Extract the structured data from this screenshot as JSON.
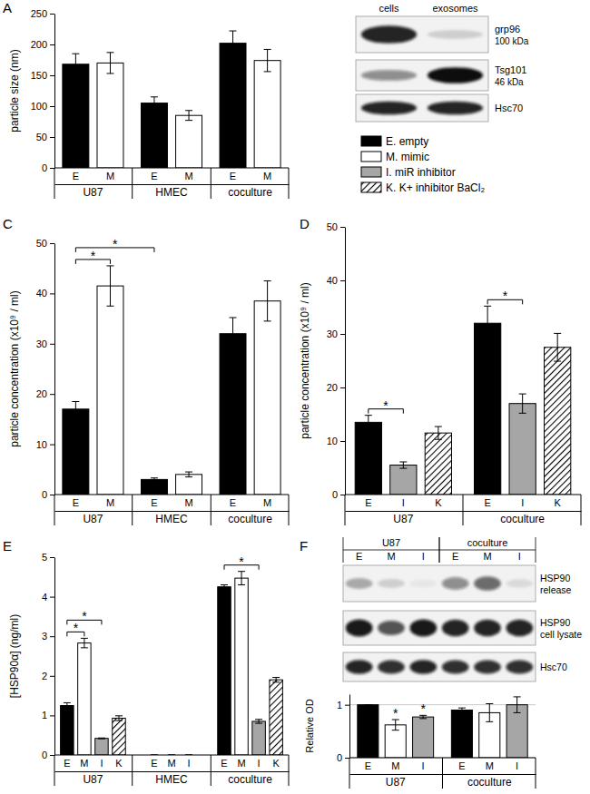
{
  "chart_data": [
    {
      "type": "bar",
      "title": "A",
      "ylabel": "particle size (nm)",
      "categories": [
        "U87",
        "HMEC",
        "coculture"
      ],
      "series": [
        {
          "name": "E",
          "color": "#000000",
          "values": [
            168,
            105,
            202
          ],
          "errors": [
            17,
            10,
            20
          ]
        },
        {
          "name": "M",
          "color": "#ffffff",
          "values": [
            170,
            85,
            174
          ],
          "errors": [
            17,
            8,
            18
          ]
        }
      ],
      "ylim": [
        0,
        250
      ],
      "yticks": [
        0,
        50,
        100,
        150,
        200,
        250
      ],
      "grid": false
    },
    {
      "type": "bar",
      "title": "C",
      "ylabel": "particle concentration (x10⁹ / ml)",
      "categories": [
        "U87",
        "HMEC",
        "coculture"
      ],
      "series": [
        {
          "name": "E",
          "color": "#000000",
          "values": [
            17,
            3,
            32
          ],
          "errors": [
            1.5,
            0.3,
            3.2
          ]
        },
        {
          "name": "M",
          "color": "#ffffff",
          "values": [
            41.5,
            4,
            38.5
          ],
          "errors": [
            4,
            0.5,
            4
          ]
        }
      ],
      "ylim": [
        0,
        50
      ],
      "yticks": [
        0,
        10,
        20,
        30,
        40,
        50
      ],
      "grid": false,
      "annotations": [
        {
          "text": "*",
          "from": [
            "U87",
            "E"
          ],
          "to": [
            "U87",
            "M"
          ]
        },
        {
          "text": "*",
          "from": [
            "U87",
            "E"
          ],
          "to": [
            "HMEC",
            "E"
          ]
        }
      ]
    },
    {
      "type": "bar",
      "title": "D",
      "ylabel": "particle concentration (x10⁹ / ml)",
      "categories": [
        "U87",
        "coculture"
      ],
      "series": [
        {
          "name": "E",
          "color": "#000000",
          "values": [
            13.5,
            32
          ],
          "errors": [
            1.3,
            3.2
          ]
        },
        {
          "name": "I",
          "color": "#a6a6a6",
          "values": [
            5.5,
            17
          ],
          "errors": [
            0.6,
            1.8
          ]
        },
        {
          "name": "K",
          "color": "#000000",
          "marker": "hatch",
          "values": [
            11.5,
            27.5
          ],
          "errors": [
            1.2,
            2.6
          ]
        }
      ],
      "ylim": [
        0,
        50
      ],
      "yticks": [
        0,
        10,
        20,
        30,
        40,
        50
      ],
      "grid": false,
      "annotations": [
        {
          "text": "*",
          "from": [
            "U87",
            "E"
          ],
          "to": [
            "U87",
            "I"
          ]
        },
        {
          "text": "*",
          "from": [
            "coculture",
            "E"
          ],
          "to": [
            "coculture",
            "I"
          ]
        }
      ]
    },
    {
      "type": "bar",
      "title": "E",
      "ylabel": "[HSP90α] (ng/ml)",
      "categories": [
        "U87",
        "HMEC",
        "coculture"
      ],
      "series": [
        {
          "name": "E",
          "color": "#000000",
          "values": [
            1.25,
            0,
            4.25
          ],
          "errors": [
            0.07,
            0,
            0.05
          ]
        },
        {
          "name": "M",
          "color": "#ffffff",
          "values": [
            2.83,
            0,
            4.47
          ],
          "errors": [
            0.12,
            0,
            0.17
          ]
        },
        {
          "name": "I",
          "color": "#a6a6a6",
          "values": [
            0.42,
            0,
            0.85
          ],
          "errors": [
            0.01,
            0,
            0.05
          ]
        },
        {
          "name": "K",
          "color": "#000000",
          "marker": "hatch",
          "values": [
            0.93,
            null,
            1.9
          ],
          "errors": [
            0.06,
            null,
            0.06
          ]
        }
      ],
      "ylim": [
        0,
        5
      ],
      "yticks": [
        0,
        1,
        2,
        3,
        4,
        5
      ],
      "grid": false,
      "annotations": [
        {
          "text": "*",
          "from": [
            "U87",
            "E"
          ],
          "to": [
            "U87",
            "M"
          ]
        },
        {
          "text": "*",
          "from": [
            "U87",
            "E"
          ],
          "to": [
            "U87",
            "I"
          ]
        },
        {
          "text": "*",
          "from": [
            "coculture",
            "E"
          ],
          "to": [
            "coculture",
            "I"
          ]
        }
      ]
    },
    {
      "type": "bar",
      "title": "F",
      "ylabel": "Relative OD",
      "categories": [
        "U87",
        "coculture"
      ],
      "series": [
        {
          "name": "E",
          "color": "#000000",
          "values": [
            1,
            0.9
          ],
          "errors": [
            0,
            0.04
          ]
        },
        {
          "name": "M",
          "color": "#ffffff",
          "values": [
            0.62,
            0.85
          ],
          "errors": [
            0.1,
            0.17
          ]
        },
        {
          "name": "I",
          "color": "#a6a6a6",
          "values": [
            0.77,
            1.0
          ],
          "errors": [
            0.03,
            0.15
          ]
        }
      ],
      "ylim": [
        0,
        1.2
      ],
      "yticks": [
        0,
        1
      ],
      "grid": true,
      "annotations": [
        {
          "text": "*",
          "at": [
            "U87",
            "M"
          ]
        },
        {
          "text": "*",
          "at": [
            "U87",
            "I"
          ]
        }
      ]
    }
  ],
  "key": {
    "items": [
      {
        "label": "E. empty",
        "color": "#000000"
      },
      {
        "label": "M. mimic",
        "color": "#ffffff"
      },
      {
        "label": "I. miR inhibitor",
        "color": "#a6a6a6"
      },
      {
        "label": "K. K+ inhibitor BaCl₂",
        "color": "#000000",
        "marker": "hatch"
      }
    ]
  },
  "blots": [
    {
      "lanes": [
        "cells",
        "exosomes"
      ],
      "rows": [
        {
          "label": "grp96",
          "size": "100 kDa",
          "bands": [
            0.9,
            0.15
          ]
        },
        {
          "label": "Tsg101",
          "size": "46 kDa",
          "bands": [
            0.45,
            1.0
          ]
        },
        {
          "label": "Hsc70",
          "bands": [
            0.9,
            0.9
          ]
        }
      ]
    },
    {
      "lane_groups": [
        {
          "label": "U87",
          "lanes": [
            "E",
            "M",
            "I"
          ]
        },
        {
          "label": "coculture",
          "lanes": [
            "E",
            "M",
            "I"
          ]
        }
      ],
      "rows": [
        {
          "label": [
            "HSP90",
            "release"
          ],
          "bands": [
            0.3,
            0.15,
            0.05,
            0.45,
            0.6,
            0.1
          ]
        },
        {
          "label": [
            "HSP90",
            "cell lysate"
          ],
          "bands": [
            0.95,
            0.7,
            0.95,
            0.9,
            0.9,
            0.9
          ]
        },
        {
          "label": [
            "Hsc70"
          ],
          "bands": [
            0.9,
            0.85,
            0.9,
            0.85,
            0.85,
            0.85
          ]
        }
      ]
    }
  ]
}
